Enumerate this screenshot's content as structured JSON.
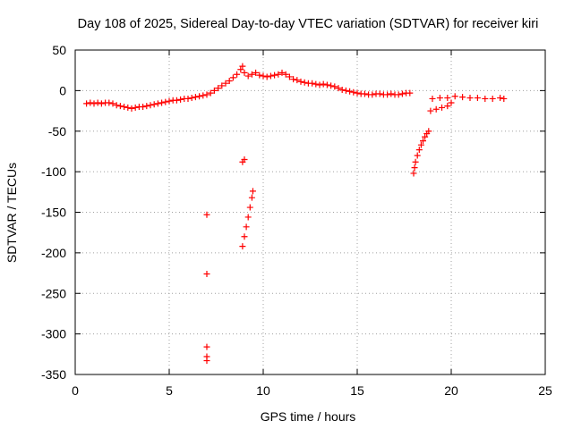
{
  "chart_data": {
    "type": "scatter",
    "title": "Day 108 of 2025, Sidereal Day-to-day VTEC variation (SDTVAR) for receiver kiri",
    "xlabel": "GPS time / hours",
    "ylabel": "SDTVAR / TECUs",
    "xlim": [
      0,
      25
    ],
    "ylim": [
      -350,
      50
    ],
    "xticks": [
      0,
      5,
      10,
      15,
      20,
      25
    ],
    "yticks": [
      -350,
      -300,
      -250,
      -200,
      -150,
      -100,
      -50,
      0,
      50
    ],
    "grid": true,
    "marker": "plus",
    "color": "#ff0000",
    "series": [
      {
        "values": [
          [
            0.6,
            -16
          ],
          [
            0.8,
            -15
          ],
          [
            1.0,
            -16
          ],
          [
            1.2,
            -15
          ],
          [
            1.4,
            -16
          ],
          [
            1.6,
            -15
          ],
          [
            1.8,
            -15
          ],
          [
            2.0,
            -16
          ],
          [
            2.2,
            -18
          ],
          [
            2.4,
            -19
          ],
          [
            2.6,
            -20
          ],
          [
            2.8,
            -21
          ],
          [
            3.0,
            -22
          ],
          [
            3.2,
            -21
          ],
          [
            3.4,
            -20
          ],
          [
            3.6,
            -20
          ],
          [
            3.8,
            -19
          ],
          [
            4.0,
            -18
          ],
          [
            4.2,
            -17
          ],
          [
            4.4,
            -16
          ],
          [
            4.6,
            -15
          ],
          [
            4.8,
            -14
          ],
          [
            5.0,
            -13
          ],
          [
            5.2,
            -12
          ],
          [
            5.4,
            -12
          ],
          [
            5.6,
            -11
          ],
          [
            5.8,
            -10
          ],
          [
            6.0,
            -10
          ],
          [
            6.2,
            -9
          ],
          [
            6.4,
            -8
          ],
          [
            6.6,
            -7
          ],
          [
            6.8,
            -6
          ],
          [
            7.0,
            -5
          ],
          [
            7.2,
            -3
          ],
          [
            7.4,
            0
          ],
          [
            7.6,
            3
          ],
          [
            7.8,
            6
          ],
          [
            8.0,
            9
          ],
          [
            8.2,
            12
          ],
          [
            8.4,
            16
          ],
          [
            8.6,
            20
          ],
          [
            8.8,
            26
          ],
          [
            8.9,
            30
          ],
          [
            9.0,
            22
          ],
          [
            9.2,
            18
          ],
          [
            9.4,
            20
          ],
          [
            9.6,
            22
          ],
          [
            9.8,
            19
          ],
          [
            10.0,
            18
          ],
          [
            10.2,
            17
          ],
          [
            10.4,
            18
          ],
          [
            10.6,
            19
          ],
          [
            10.8,
            20
          ],
          [
            11.0,
            22
          ],
          [
            11.2,
            20
          ],
          [
            11.4,
            17
          ],
          [
            11.6,
            14
          ],
          [
            11.8,
            13
          ],
          [
            12.0,
            11
          ],
          [
            12.2,
            10
          ],
          [
            12.4,
            9
          ],
          [
            12.6,
            9
          ],
          [
            12.8,
            8
          ],
          [
            13.0,
            7
          ],
          [
            13.2,
            8
          ],
          [
            13.4,
            7
          ],
          [
            13.6,
            6
          ],
          [
            13.8,
            5
          ],
          [
            14.0,
            3
          ],
          [
            14.2,
            1
          ],
          [
            14.4,
            0
          ],
          [
            14.6,
            -1
          ],
          [
            14.8,
            -2
          ],
          [
            15.0,
            -3
          ],
          [
            15.2,
            -4
          ],
          [
            15.4,
            -4
          ],
          [
            15.6,
            -5
          ],
          [
            15.8,
            -5
          ],
          [
            16.0,
            -4
          ],
          [
            16.2,
            -4
          ],
          [
            16.4,
            -5
          ],
          [
            16.6,
            -5
          ],
          [
            16.8,
            -4
          ],
          [
            17.0,
            -5
          ],
          [
            17.2,
            -5
          ],
          [
            17.4,
            -4
          ],
          [
            17.6,
            -3
          ],
          [
            17.8,
            -3
          ],
          [
            7.0,
            -153
          ],
          [
            7.0,
            -226
          ],
          [
            7.0,
            -316
          ],
          [
            7.0,
            -328
          ],
          [
            7.0,
            -333
          ],
          [
            8.9,
            -88
          ],
          [
            9.0,
            -85
          ],
          [
            8.9,
            -192
          ],
          [
            9.0,
            -180
          ],
          [
            9.1,
            -168
          ],
          [
            9.2,
            -156
          ],
          [
            9.3,
            -144
          ],
          [
            9.4,
            -132
          ],
          [
            9.45,
            -124
          ],
          [
            18.0,
            -102
          ],
          [
            18.05,
            -95
          ],
          [
            18.1,
            -88
          ],
          [
            18.2,
            -80
          ],
          [
            18.3,
            -73
          ],
          [
            18.4,
            -67
          ],
          [
            18.5,
            -62
          ],
          [
            18.6,
            -57
          ],
          [
            18.7,
            -53
          ],
          [
            18.8,
            -50
          ],
          [
            18.9,
            -25
          ],
          [
            19.2,
            -23
          ],
          [
            19.5,
            -21
          ],
          [
            19.8,
            -19
          ],
          [
            20.0,
            -15
          ],
          [
            19.0,
            -10
          ],
          [
            19.4,
            -9
          ],
          [
            19.8,
            -9
          ],
          [
            20.2,
            -7
          ],
          [
            20.6,
            -8
          ],
          [
            21.0,
            -9
          ],
          [
            21.4,
            -9
          ],
          [
            21.8,
            -10
          ],
          [
            22.2,
            -10
          ],
          [
            22.6,
            -9
          ],
          [
            22.8,
            -10
          ]
        ]
      }
    ]
  }
}
